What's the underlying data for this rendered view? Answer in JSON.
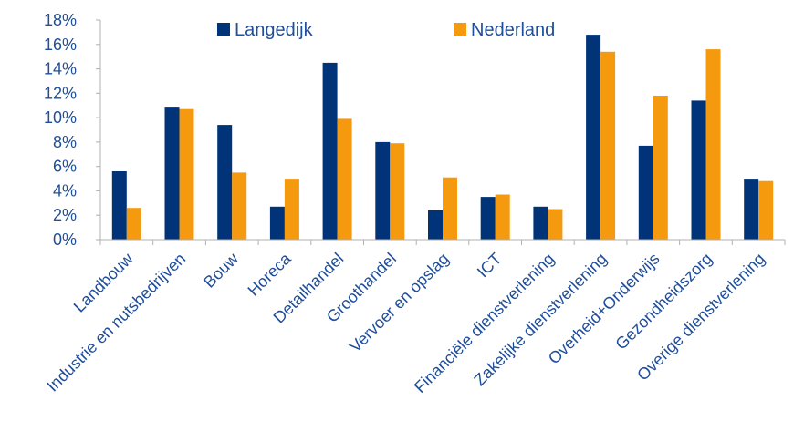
{
  "chart_data": {
    "type": "bar",
    "categories": [
      "Landbouw",
      "Industrie en nutsbedrijven",
      "Bouw",
      "Horeca",
      "Detailhandel",
      "Groothandel",
      "Vervoer en opslag",
      "ICT",
      "Financiële dienstverlening",
      "Zakelijke dienstverlening",
      "Overheid+Onderwijs",
      "Gezondheidszorg",
      "Overige dienstverlening"
    ],
    "series": [
      {
        "name": "Langedijk",
        "color": "#003377",
        "values": [
          5.6,
          10.9,
          9.4,
          2.7,
          14.5,
          8.0,
          2.4,
          3.5,
          2.7,
          16.8,
          7.7,
          11.4,
          5.0
        ]
      },
      {
        "name": "Nederland",
        "color": "#f59a0f",
        "values": [
          2.6,
          10.7,
          5.5,
          5.0,
          9.9,
          7.9,
          5.1,
          3.7,
          2.5,
          15.4,
          11.8,
          15.6,
          4.8
        ]
      }
    ],
    "yticks": [
      "0%",
      "2%",
      "4%",
      "6%",
      "8%",
      "10%",
      "12%",
      "14%",
      "16%",
      "18%"
    ],
    "ylim": [
      0,
      18
    ],
    "title": "",
    "xlabel": "",
    "ylabel": "",
    "grid": false,
    "legend_position": "top-center",
    "axis_color": "#b0b0b0",
    "text_color": "#1f4e9a"
  }
}
